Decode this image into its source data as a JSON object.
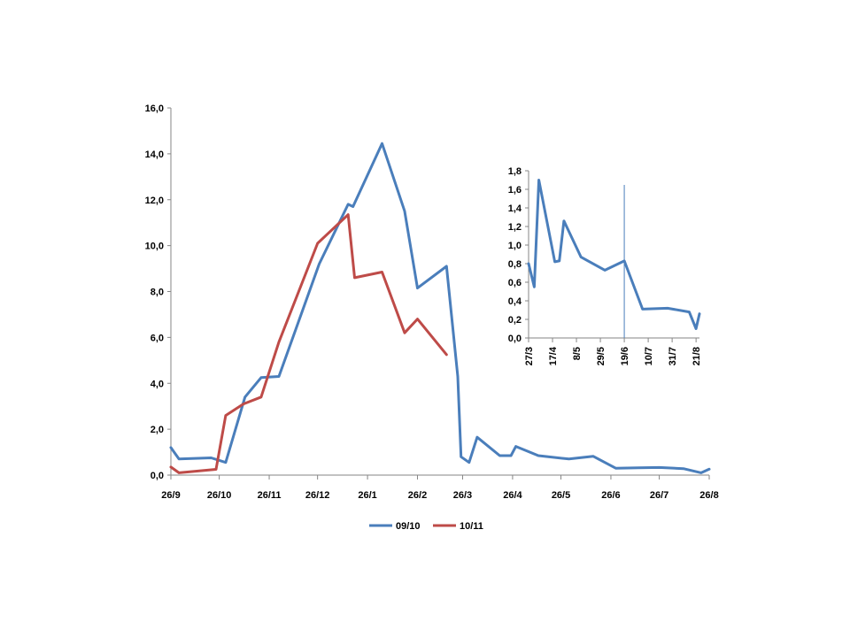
{
  "colors": {
    "series_blue": "#4a7ebb",
    "series_red": "#be4b48",
    "axis": "#868686"
  },
  "chart_data": [
    {
      "type": "line",
      "title": "",
      "xlabel": "",
      "ylabel": "",
      "ylim": [
        0,
        16
      ],
      "yticks": [
        "0,0",
        "2,0",
        "4,0",
        "6,0",
        "8,0",
        "10,0",
        "12,0",
        "14,0",
        "16,0"
      ],
      "ytick_values": [
        0,
        2,
        4,
        6,
        8,
        10,
        12,
        14,
        16
      ],
      "xlim": [
        0,
        334
      ],
      "xticks": [
        "26/9",
        "26/10",
        "26/11",
        "26/12",
        "26/1",
        "26/2",
        "26/3",
        "26/4",
        "26/5",
        "26/6",
        "26/7",
        "26/8"
      ],
      "xtick_values": [
        0,
        30,
        61,
        91,
        122,
        153,
        181,
        212,
        242,
        273,
        303,
        334
      ],
      "legend": "bottom",
      "grid": false,
      "series": [
        {
          "name": "09/10",
          "color": "#4a7ebb",
          "points": [
            [
              0,
              1.2
            ],
            [
              5,
              0.7
            ],
            [
              25,
              0.75
            ],
            [
              34,
              0.55
            ],
            [
              46,
              3.4
            ],
            [
              56,
              4.25
            ],
            [
              67,
              4.3
            ],
            [
              92,
              9.2
            ],
            [
              110,
              11.8
            ],
            [
              113,
              11.7
            ],
            [
              131,
              14.45
            ],
            [
              145,
              11.5
            ],
            [
              153,
              8.15
            ],
            [
              171,
              9.1
            ],
            [
              178,
              4.3
            ],
            [
              180,
              0.8
            ],
            [
              185,
              0.55
            ],
            [
              190,
              1.65
            ],
            [
              204,
              0.85
            ],
            [
              211,
              0.85
            ],
            [
              214,
              1.25
            ],
            [
              228,
              0.85
            ],
            [
              247,
              0.7
            ],
            [
              262,
              0.82
            ],
            [
              276,
              0.3
            ],
            [
              290,
              0.32
            ],
            [
              303,
              0.33
            ],
            [
              318,
              0.28
            ],
            [
              329,
              0.1
            ],
            [
              334,
              0.26
            ]
          ]
        },
        {
          "name": "10/11",
          "color": "#be4b48",
          "points": [
            [
              0,
              0.35
            ],
            [
              5,
              0.1
            ],
            [
              28,
              0.25
            ],
            [
              34,
              2.6
            ],
            [
              45,
              3.1
            ],
            [
              56,
              3.4
            ],
            [
              67,
              5.8
            ],
            [
              91,
              10.1
            ],
            [
              110,
              11.35
            ],
            [
              114,
              8.6
            ],
            [
              131,
              8.85
            ],
            [
              145,
              6.2
            ],
            [
              153,
              6.8
            ],
            [
              171,
              5.25
            ]
          ]
        }
      ]
    },
    {
      "type": "line",
      "title": "",
      "xlabel": "",
      "ylabel": "",
      "ylim": [
        0,
        1.8
      ],
      "yticks": [
        "0,0",
        "0,2",
        "0,4",
        "0,6",
        "0,8",
        "1,0",
        "1,2",
        "1,4",
        "1,6",
        "1,8"
      ],
      "ytick_values": [
        0,
        0.2,
        0.4,
        0.6,
        0.8,
        1.0,
        1.2,
        1.4,
        1.6,
        1.8
      ],
      "xlim": [
        0,
        150
      ],
      "xticks": [
        "27/3",
        "17/4",
        "8/5",
        "29/5",
        "19/6",
        "10/7",
        "31/7",
        "21/8"
      ],
      "xtick_values": [
        0,
        21,
        42,
        63,
        84,
        105,
        126,
        147
      ],
      "vline_x": 84,
      "grid": false,
      "series": [
        {
          "name": "09/10",
          "color": "#4a7ebb",
          "points": [
            [
              0,
              0.8
            ],
            [
              5,
              0.55
            ],
            [
              9,
              1.7
            ],
            [
              23,
              0.82
            ],
            [
              27,
              0.83
            ],
            [
              31,
              1.26
            ],
            [
              46,
              0.87
            ],
            [
              67,
              0.73
            ],
            [
              84,
              0.83
            ],
            [
              100,
              0.31
            ],
            [
              122,
              0.32
            ],
            [
              141,
              0.28
            ],
            [
              147,
              0.1
            ],
            [
              150,
              0.26
            ]
          ]
        }
      ]
    }
  ]
}
